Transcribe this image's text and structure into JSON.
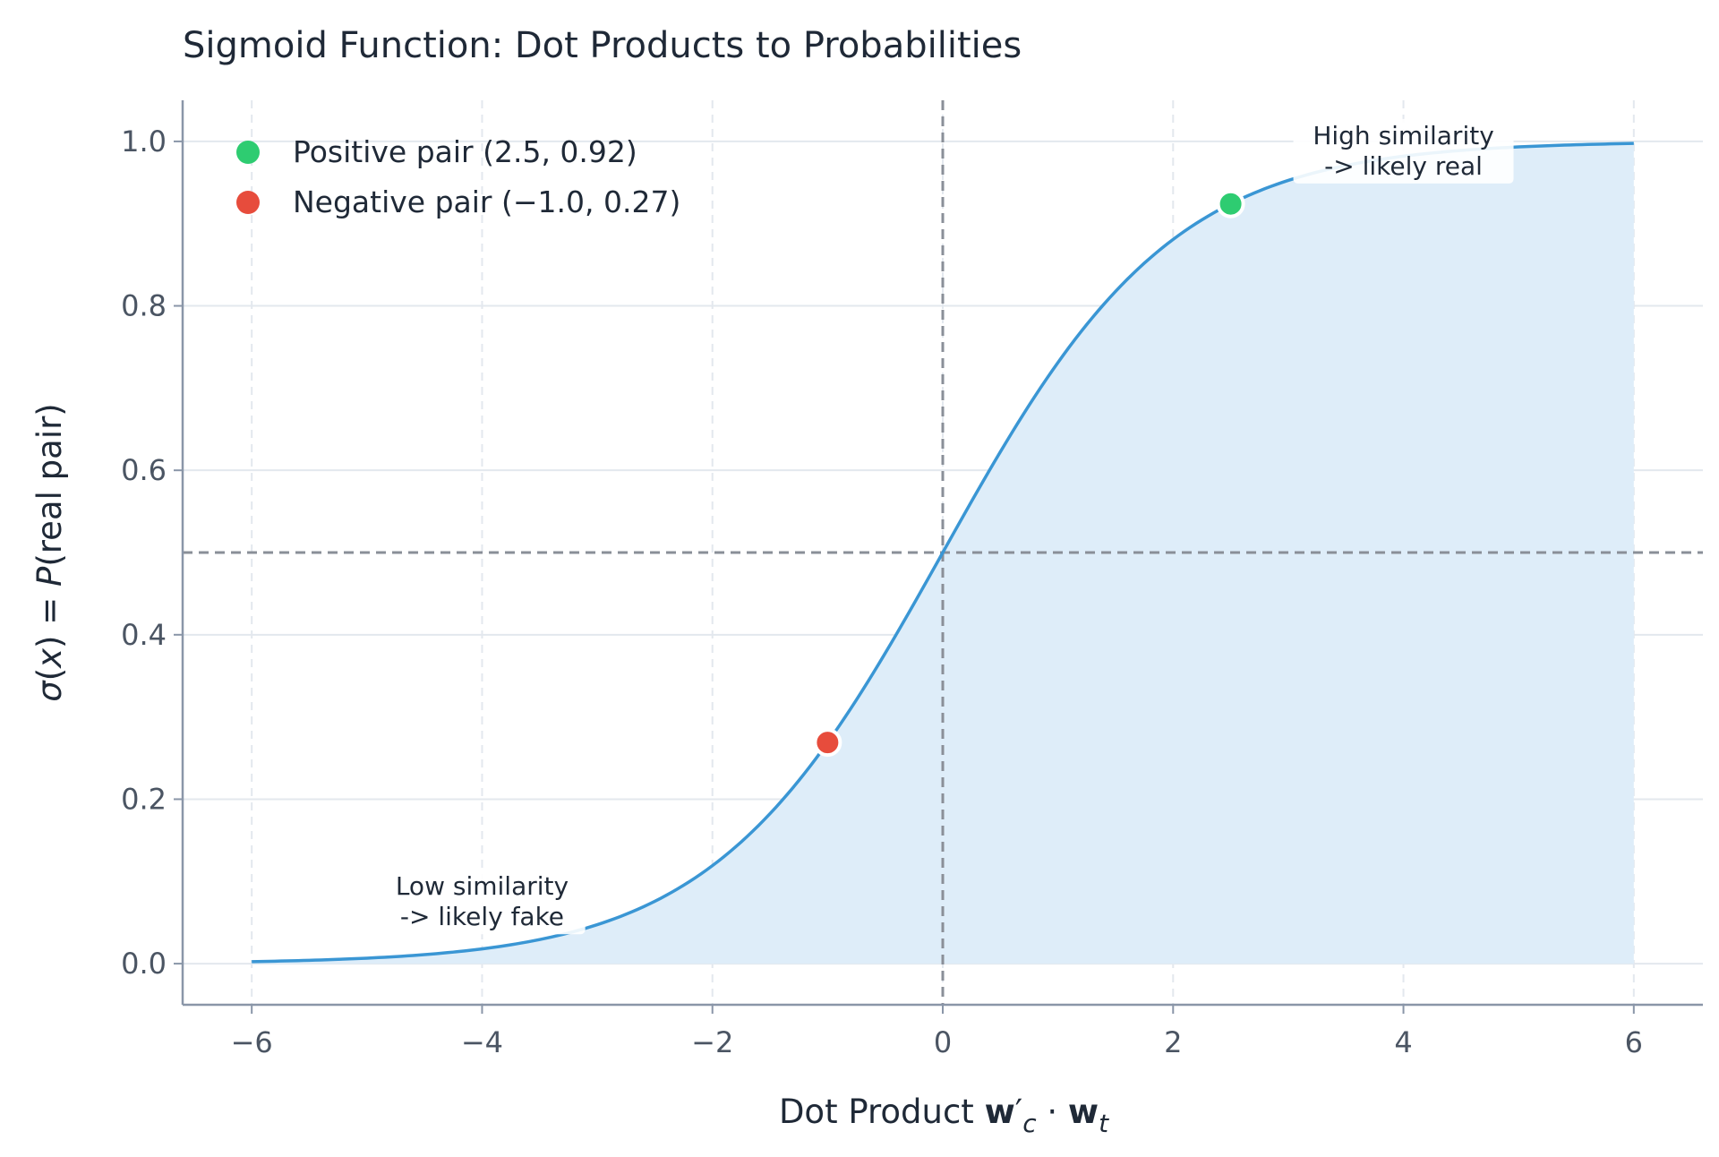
{
  "chart_data": {
    "type": "line",
    "title": "Sigmoid Function: Dot Products to Probabilities",
    "xlabel": {
      "prefix": "Dot Product ",
      "bold1": "w",
      "prime": "′",
      "sub1": "c",
      "dot": " · ",
      "bold2": "w",
      "sub2": "t"
    },
    "ylabel": {
      "sigma": "σ",
      "open": "(",
      "x": "x",
      "close": ") = ",
      "P": "P",
      "rest": "(real pair)"
    },
    "xlim": [
      -6.6,
      6.6
    ],
    "ylim": [
      -0.05,
      1.05
    ],
    "x_ticks": [
      -6,
      -4,
      -2,
      0,
      2,
      4,
      6
    ],
    "x_tick_labels": [
      "−6",
      "−4",
      "−2",
      "0",
      "2",
      "4",
      "6"
    ],
    "y_ticks": [
      0.0,
      0.2,
      0.4,
      0.6,
      0.8,
      1.0
    ],
    "y_tick_labels": [
      "0.0",
      "0.2",
      "0.4",
      "0.6",
      "0.8",
      "1.0"
    ],
    "grid": true,
    "series": [
      {
        "function": "sigmoid",
        "x_range": [
          -6,
          6
        ],
        "color": "#3a96d4",
        "fill_color": "#deedf9"
      }
    ],
    "reference_lines": [
      {
        "orientation": "vertical",
        "value": 0,
        "color": "#8a8f98"
      },
      {
        "orientation": "horizontal",
        "value": 0.5,
        "color": "#8a8f98"
      }
    ],
    "points": [
      {
        "label": "Positive pair (2.5, 0.92)",
        "x": 2.5,
        "y": 0.924,
        "color": "#2ecc71"
      },
      {
        "label": "Negative pair (−1.0, 0.27)",
        "x": -1.0,
        "y": 0.269,
        "color": "#e74c3c"
      }
    ],
    "legend_position": "top-left",
    "annotations": [
      {
        "lines": [
          "High similarity",
          "-> likely real"
        ],
        "x": 4.0,
        "y": 0.988
      },
      {
        "lines": [
          "Low similarity",
          "-> likely fake"
        ],
        "x": -4.0,
        "y": 0.075
      }
    ]
  }
}
